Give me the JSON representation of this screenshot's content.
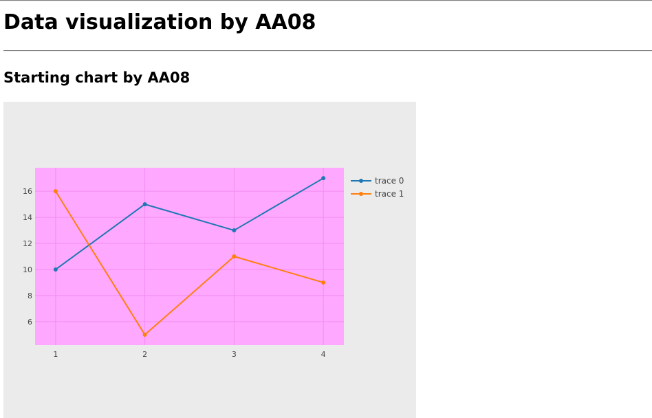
{
  "page": {
    "title": "Data visualization by AA08",
    "section_title": "Starting chart by AA08"
  },
  "colors": {
    "paper_bg": "#ebebeb",
    "plot_bg": "#ffa8ff",
    "grid": "#f08ef0",
    "trace0": "#1f77b4",
    "trace1": "#ff7f0e"
  },
  "chart_data": {
    "type": "line",
    "x": [
      1,
      2,
      3,
      4
    ],
    "series": [
      {
        "name": "trace 0",
        "values": [
          10,
          15,
          13,
          17
        ]
      },
      {
        "name": "trace 1",
        "values": [
          16,
          5,
          11,
          9
        ]
      }
    ],
    "x_ticks": [
      "1",
      "2",
      "3",
      "4"
    ],
    "y_ticks": [
      "6",
      "8",
      "10",
      "12",
      "14",
      "16"
    ],
    "xlim": [
      0.77,
      4.23
    ],
    "ylim": [
      4.2,
      17.8
    ],
    "title": "",
    "xlabel": "",
    "ylabel": "",
    "grid": true,
    "legend_placement": "top-right outside plot",
    "markers": true
  }
}
